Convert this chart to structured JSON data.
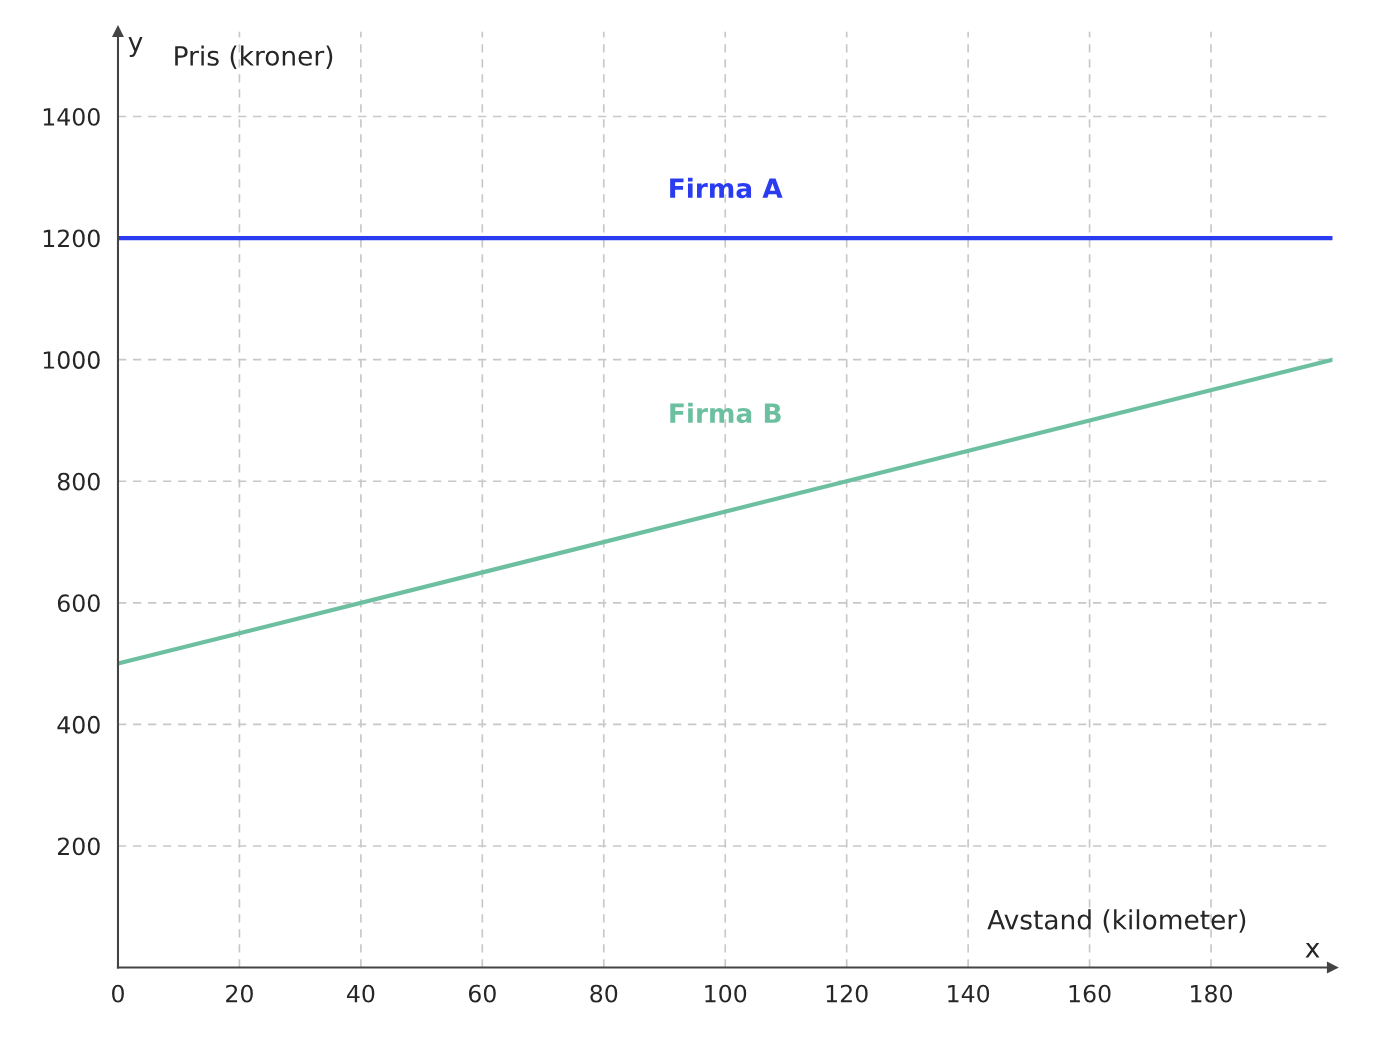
{
  "chart_data": {
    "type": "line",
    "xlabel": "Avstand (kilometer)",
    "ylabel": "Pris (kroner)",
    "annotations": [
      "y",
      "x"
    ],
    "x": [
      0,
      200
    ],
    "series": [
      {
        "name": "Firma A",
        "color": "#2a3cf0",
        "values": [
          1200,
          1200
        ]
      },
      {
        "name": "Firma B",
        "color": "#6cc0a0",
        "values": [
          500,
          1000
        ]
      }
    ],
    "xlim": [
      0,
      200
    ],
    "ylim": [
      0,
      1540
    ],
    "xticks": [
      0,
      20,
      40,
      60,
      80,
      100,
      120,
      140,
      160,
      180
    ],
    "yticks": [
      200,
      400,
      600,
      800,
      1000,
      1200,
      1400
    ],
    "grid": true,
    "legend": false,
    "marker": "none",
    "line_style": "solid"
  }
}
